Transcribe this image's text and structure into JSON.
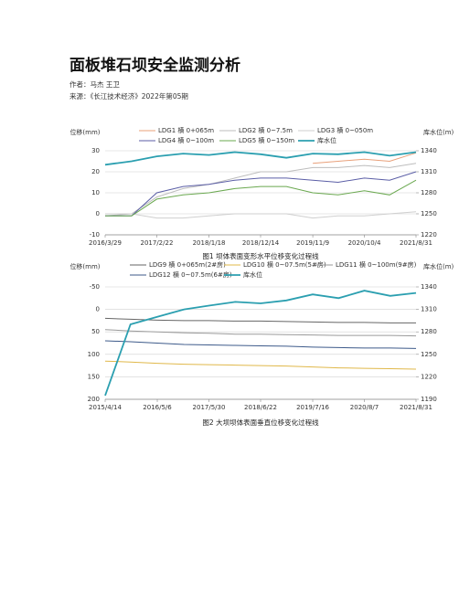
{
  "document": {
    "title": "面板堆石坝安全监测分析",
    "author": "作者：马杰 王卫",
    "source": "来源：《长江技术经济》2022年第05期"
  },
  "chart_data": [
    {
      "type": "line",
      "caption": "图1  坝体表面变形水平位移变化过程线",
      "ylabel": "位移(mm)",
      "y2label": "库水位(m)",
      "x": [
        2016.24,
        2016.7,
        2017.14,
        2017.6,
        2018.05,
        2018.5,
        2018.95,
        2019.4,
        2019.86,
        2020.3,
        2020.76,
        2021.2,
        2021.66
      ],
      "xlim": [
        2016.24,
        2021.66
      ],
      "xticks": [
        {
          "value": 2016.24,
          "label": "2016/3/29"
        },
        {
          "value": 2017.14,
          "label": "2017/2/22"
        },
        {
          "value": 2018.05,
          "label": "2018/1/18"
        },
        {
          "value": 2018.95,
          "label": "2018/12/14"
        },
        {
          "value": 2019.86,
          "label": "2019/11/9"
        },
        {
          "value": 2020.76,
          "label": "2020/10/4"
        },
        {
          "value": 2021.66,
          "label": "2021/8/31"
        }
      ],
      "ylim": [
        -10,
        30
      ],
      "yticks": [
        30,
        20,
        10,
        0,
        -10
      ],
      "y2lim": [
        1220,
        1340
      ],
      "y2ticks": [
        1340,
        1310,
        1280,
        1250,
        1220
      ],
      "grid": true,
      "series": [
        {
          "name": "LDG1  横 0+065m",
          "color": "#e8a07a",
          "values": [
            null,
            null,
            null,
            null,
            null,
            null,
            null,
            null,
            24,
            25,
            26,
            25,
            29
          ]
        },
        {
          "name": "LDG2  横 0~7.5m",
          "color": "#bdbdbd",
          "values": [
            -1,
            0,
            8,
            12,
            14,
            17,
            20,
            20,
            22,
            22,
            23,
            22,
            24
          ]
        },
        {
          "name": "LDG3  横 0~050m",
          "color": "#cfcfcf",
          "values": [
            0,
            0,
            -2,
            -2,
            -1,
            0,
            0,
            0,
            -2,
            -1,
            -1,
            0,
            1
          ]
        },
        {
          "name": "LDG4  横 0~100m",
          "color": "#5b5ea6",
          "values": [
            -1,
            -1,
            10,
            13,
            14,
            16,
            17,
            17,
            16,
            15,
            17,
            16,
            20
          ]
        },
        {
          "name": "LDG5  横 0~150m",
          "color": "#6aa84f",
          "values": [
            -1,
            -1,
            7,
            9,
            10,
            12,
            13,
            13,
            10,
            9,
            11,
            9,
            16
          ]
        },
        {
          "name": "库水位",
          "color": "#2b9fb0",
          "axis": "y2",
          "values": [
            1320,
            1325,
            1332,
            1336,
            1334,
            1338,
            1335,
            1330,
            1336,
            1335,
            1338,
            1333,
            1338
          ]
        }
      ]
    },
    {
      "type": "line",
      "caption": "图2  大坝坝体表面垂直位移变化过程线",
      "ylabel": "位移(mm)",
      "y2label": "库水位(m)",
      "x": [
        2015.28,
        2015.8,
        2016.35,
        2016.9,
        2017.41,
        2017.95,
        2018.47,
        2019.0,
        2019.54,
        2020.07,
        2020.6,
        2021.13,
        2021.66
      ],
      "xlim": [
        2015.28,
        2021.66
      ],
      "xticks": [
        {
          "value": 2015.28,
          "label": "2015/4/14"
        },
        {
          "value": 2016.35,
          "label": "2016/5/6"
        },
        {
          "value": 2017.41,
          "label": "2017/5/30"
        },
        {
          "value": 2018.47,
          "label": "2018/6/22"
        },
        {
          "value": 2019.54,
          "label": "2019/7/16"
        },
        {
          "value": 2020.6,
          "label": "2020/8/7"
        },
        {
          "value": 2021.66,
          "label": "2021/8/31"
        }
      ],
      "ylim": [
        200,
        -50
      ],
      "yticks": [
        -50,
        0,
        50,
        100,
        150,
        200
      ],
      "y2lim": [
        1190,
        1340
      ],
      "y2ticks": [
        1340,
        1310,
        1280,
        1250,
        1220,
        1190
      ],
      "grid": true,
      "series": [
        {
          "name": "LDG9  横 0+065m(2#房)",
          "color": "#666666",
          "values": [
            20,
            22,
            24,
            25,
            25,
            26,
            26,
            27,
            28,
            29,
            29,
            30,
            30
          ]
        },
        {
          "name": "LDG10  横 0~07.5m(5#房)",
          "color": "#e0b84a",
          "values": [
            115,
            117,
            120,
            122,
            123,
            124,
            125,
            126,
            128,
            130,
            131,
            132,
            133
          ]
        },
        {
          "name": "LDG11  横 0~100m(9#房)",
          "color": "#9a9a9a",
          "values": [
            45,
            48,
            50,
            52,
            53,
            55,
            55,
            56,
            57,
            58,
            58,
            58,
            59
          ]
        },
        {
          "name": "LDG12  横 0~07.5m(6#房)",
          "color": "#3d5a8a",
          "values": [
            70,
            72,
            75,
            78,
            79,
            80,
            81,
            82,
            84,
            85,
            86,
            86,
            87
          ]
        },
        {
          "name": "库水位",
          "color": "#2b9fb0",
          "axis": "y2",
          "values": [
            1195,
            1290,
            1300,
            1310,
            1315,
            1320,
            1318,
            1322,
            1330,
            1325,
            1335,
            1328,
            1332
          ]
        }
      ]
    }
  ]
}
